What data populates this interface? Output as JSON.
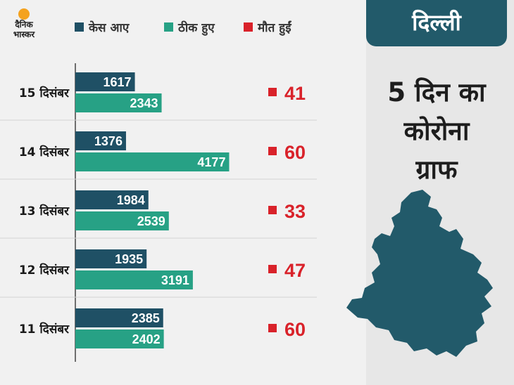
{
  "logo": {
    "line1": "दैनिक",
    "line2": "भास्कर"
  },
  "city": "दिल्ली",
  "headline": [
    "5 दिन का",
    "कोरोना",
    "ग्राफ"
  ],
  "colors": {
    "cases": "#1f5065",
    "recovered": "#27a185",
    "deaths": "#d9222a",
    "dark_teal": "#225a6a"
  },
  "map_icon": "delhi-map-icon",
  "chart_data": {
    "type": "bar",
    "orientation": "horizontal",
    "legend": [
      "केस आए",
      "ठीक हुए",
      "मौत हुईं"
    ],
    "legend_position": "top",
    "categories": [
      "15 दिसंबर",
      "14 दिसंबर",
      "13 दिसंबर",
      "12 दिसंबर",
      "11 दिसंबर"
    ],
    "series": [
      {
        "name": "केस आए",
        "values": [
          1617,
          1376,
          1984,
          1935,
          2385
        ]
      },
      {
        "name": "ठीक हुए",
        "values": [
          2343,
          4177,
          2539,
          3191,
          2402
        ]
      },
      {
        "name": "मौत हुईं",
        "values": [
          41,
          60,
          33,
          47,
          60
        ]
      }
    ],
    "grid": false
  }
}
